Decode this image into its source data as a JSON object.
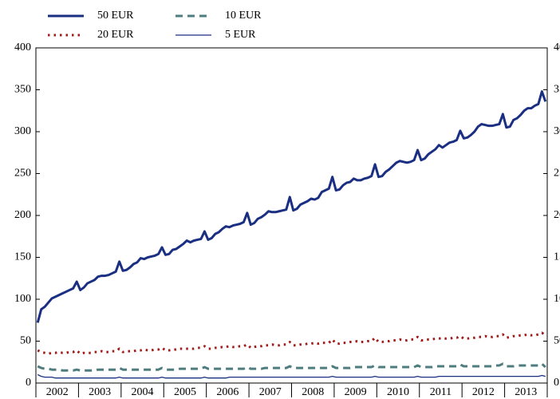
{
  "chart_data": {
    "type": "line",
    "categories": [
      null,
      null,
      null,
      null,
      null,
      null,
      "2002",
      null,
      null,
      null,
      null,
      null,
      null,
      null,
      null,
      null,
      null,
      null,
      "2003",
      null,
      null,
      null,
      null,
      null,
      null,
      null,
      null,
      null,
      null,
      null,
      "2004",
      null,
      null,
      null,
      null,
      null,
      null,
      null,
      null,
      null,
      null,
      null,
      "2005",
      null,
      null,
      null,
      null,
      null,
      null,
      null,
      null,
      null,
      null,
      null,
      "2006",
      null,
      null,
      null,
      null,
      null,
      null,
      null,
      null,
      null,
      null,
      null,
      "2007",
      null,
      null,
      null,
      null,
      null,
      null,
      null,
      null,
      null,
      null,
      null,
      "2008",
      null,
      null,
      null,
      null,
      null,
      null,
      null,
      null,
      null,
      null,
      null,
      "2009",
      null,
      null,
      null,
      null,
      null,
      null,
      null,
      null,
      null,
      null,
      null,
      "2010",
      null,
      null,
      null,
      null,
      null,
      null,
      null,
      null,
      null,
      null,
      null,
      "2011",
      null,
      null,
      null,
      null,
      null,
      null,
      null,
      null,
      null,
      null,
      null,
      "2012",
      null,
      null,
      null,
      null,
      null,
      null,
      null,
      null,
      null,
      null,
      null,
      "2013",
      null,
      null,
      null,
      null,
      null
    ],
    "series": [
      {
        "name": "50 EUR",
        "color": "#1b2f82",
        "dash": "solid",
        "values": [
          72,
          88,
          91,
          96,
          101,
          103,
          105,
          107,
          109,
          111,
          113,
          121,
          111,
          114,
          119,
          121,
          123,
          127,
          128,
          128,
          129,
          131,
          133,
          145,
          134,
          135,
          138,
          142,
          144,
          149,
          148,
          150,
          151,
          152,
          154,
          162,
          153,
          154,
          159,
          160,
          163,
          166,
          170,
          168,
          170,
          171,
          172,
          181,
          171,
          173,
          178,
          180,
          184,
          187,
          186,
          188,
          189,
          190,
          192,
          203,
          189,
          191,
          196,
          198,
          201,
          205,
          204,
          204,
          205,
          206,
          207,
          222,
          206,
          208,
          213,
          215,
          217,
          220,
          219,
          221,
          228,
          230,
          232,
          246,
          230,
          231,
          236,
          239,
          240,
          244,
          242,
          242,
          244,
          245,
          247,
          261,
          246,
          247,
          252,
          255,
          259,
          263,
          265,
          264,
          263,
          264,
          266,
          278,
          266,
          268,
          273,
          276,
          279,
          284,
          281,
          284,
          287,
          288,
          290,
          301,
          292,
          293,
          296,
          300,
          306,
          309,
          308,
          307,
          307,
          308,
          309,
          321,
          305,
          306,
          314,
          316,
          320,
          325,
          328,
          328,
          331,
          333,
          348,
          336
        ]
      },
      {
        "name": "10 EUR",
        "color": "#4f7d7f",
        "dash": "dashed",
        "values": [
          20,
          18,
          17,
          17,
          16,
          16,
          16,
          15,
          15,
          15,
          15,
          16,
          15,
          15,
          15,
          15,
          15,
          16,
          16,
          16,
          16,
          16,
          16,
          18,
          16,
          16,
          16,
          16,
          16,
          16,
          16,
          16,
          16,
          16,
          16,
          18,
          16,
          16,
          16,
          16,
          17,
          17,
          17,
          17,
          17,
          17,
          17,
          19,
          17,
          17,
          17,
          17,
          17,
          17,
          17,
          17,
          17,
          17,
          17,
          19,
          17,
          17,
          17,
          17,
          18,
          18,
          18,
          18,
          18,
          18,
          18,
          20,
          18,
          18,
          18,
          18,
          18,
          18,
          18,
          18,
          18,
          18,
          18,
          20,
          18,
          18,
          18,
          18,
          18,
          19,
          19,
          19,
          19,
          19,
          19,
          21,
          19,
          19,
          19,
          19,
          19,
          19,
          19,
          19,
          19,
          19,
          19,
          21,
          19,
          19,
          19,
          19,
          20,
          20,
          20,
          20,
          20,
          20,
          20,
          22,
          20,
          20,
          20,
          20,
          20,
          20,
          20,
          20,
          20,
          21,
          21,
          23,
          20,
          20,
          20,
          21,
          21,
          21,
          21,
          21,
          21,
          21,
          23,
          19
        ]
      },
      {
        "name": "20 EUR",
        "color": "#a01c1c",
        "dash": "dotted",
        "values": [
          39,
          37,
          36,
          35,
          36,
          36,
          37,
          36,
          36,
          37,
          37,
          39,
          35,
          36,
          36,
          36,
          37,
          37,
          38,
          37,
          37,
          38,
          38,
          41,
          37,
          38,
          38,
          38,
          39,
          39,
          40,
          39,
          39,
          40,
          40,
          42,
          39,
          39,
          40,
          40,
          41,
          41,
          41,
          41,
          41,
          42,
          42,
          44,
          41,
          41,
          42,
          42,
          43,
          43,
          44,
          43,
          43,
          44,
          44,
          46,
          42,
          43,
          44,
          44,
          45,
          45,
          46,
          45,
          45,
          46,
          46,
          49,
          45,
          45,
          46,
          46,
          47,
          47,
          48,
          47,
          48,
          48,
          48,
          52,
          47,
          47,
          48,
          48,
          49,
          49,
          50,
          49,
          49,
          50,
          50,
          54,
          49,
          49,
          50,
          50,
          51,
          51,
          52,
          51,
          51,
          52,
          52,
          55,
          51,
          51,
          52,
          52,
          53,
          53,
          54,
          53,
          53,
          54,
          54,
          56,
          53,
          53,
          54,
          54,
          55,
          55,
          56,
          55,
          55,
          56,
          56,
          58,
          54,
          55,
          56,
          56,
          57,
          57,
          58,
          57,
          57,
          58,
          60,
          57
        ]
      },
      {
        "name": "5 EUR",
        "color": "#1b2f82",
        "dash": "thin",
        "values": [
          10,
          8,
          7,
          7,
          7,
          6,
          6,
          6,
          6,
          6,
          6,
          6,
          6,
          6,
          6,
          6,
          6,
          6,
          6,
          6,
          6,
          6,
          6,
          7,
          6,
          6,
          6,
          6,
          6,
          6,
          6,
          6,
          6,
          6,
          6,
          7,
          6,
          6,
          6,
          6,
          6,
          6,
          6,
          6,
          6,
          6,
          6,
          7,
          6,
          6,
          6,
          6,
          6,
          6,
          7,
          7,
          7,
          7,
          7,
          7,
          7,
          7,
          7,
          7,
          7,
          7,
          7,
          7,
          7,
          7,
          7,
          7,
          7,
          7,
          7,
          7,
          7,
          7,
          7,
          7,
          7,
          7,
          7,
          8,
          7,
          7,
          7,
          7,
          7,
          7,
          7,
          7,
          7,
          7,
          7,
          8,
          7,
          7,
          7,
          7,
          7,
          7,
          7,
          7,
          7,
          7,
          7,
          8,
          7,
          7,
          7,
          7,
          7,
          8,
          8,
          8,
          8,
          8,
          8,
          8,
          8,
          8,
          8,
          8,
          8,
          8,
          8,
          8,
          8,
          8,
          8,
          8,
          8,
          8,
          8,
          8,
          8,
          8,
          8,
          8,
          8,
          8,
          9,
          8
        ]
      }
    ],
    "ylim": [
      0,
      400
    ],
    "yticks": [
      0,
      50,
      100,
      150,
      200,
      250,
      300,
      350,
      400
    ]
  }
}
